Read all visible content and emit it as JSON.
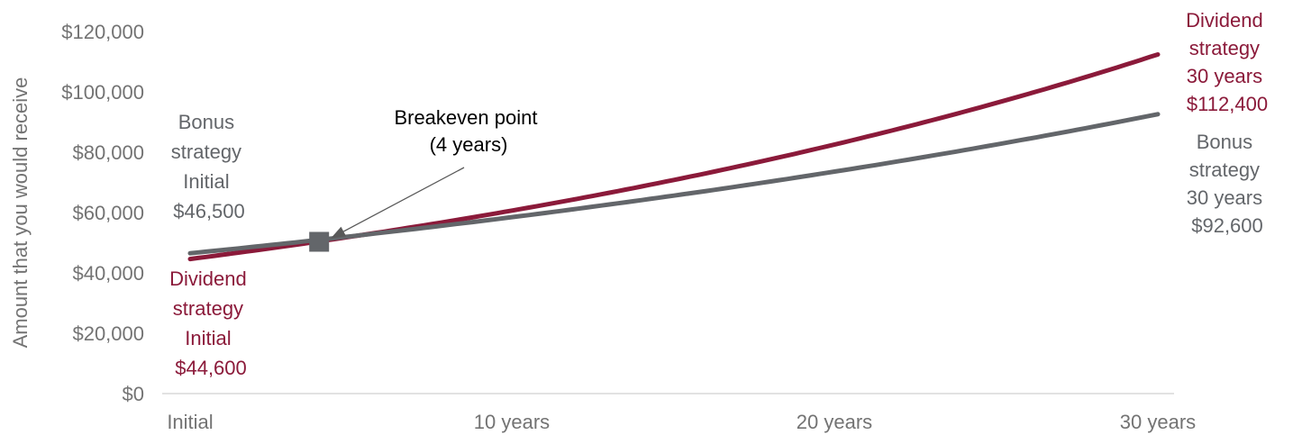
{
  "chart_data": {
    "type": "line",
    "ylabel": "Amount that you would receive",
    "y_tick_labels": [
      "$0",
      "$20,000",
      "$40,000",
      "$60,000",
      "$80,000",
      "$100,000",
      "$120,000"
    ],
    "y_ticks": [
      0,
      20000,
      40000,
      60000,
      80000,
      100000,
      120000
    ],
    "ylim": [
      0,
      120000
    ],
    "x_tick_labels": [
      "Initial",
      "10 years",
      "20 years",
      "30 years"
    ],
    "x_ticks": [
      0,
      10,
      20,
      30
    ],
    "xlim": [
      0,
      30
    ],
    "grid": false,
    "colors": {
      "dividend": "#8b1a3a",
      "bonus": "#63666a",
      "axis": "#d9d9d9",
      "text": "#737373",
      "arrow": "#595959"
    },
    "series": [
      {
        "key": "dividend",
        "start": 44600,
        "end": 112400,
        "x": [
          0,
          4,
          10,
          20,
          30
        ],
        "values": [
          44600,
          50300,
          60500,
          82300,
          112400
        ]
      },
      {
        "key": "bonus",
        "start": 46500,
        "end": 92600,
        "x": [
          0,
          4,
          10,
          20,
          30
        ],
        "values": [
          46500,
          50300,
          56400,
          71800,
          92600
        ]
      }
    ],
    "breakeven": {
      "x": 4,
      "y": 50300,
      "label_lines": [
        "Breakeven point",
        "(4 years)"
      ]
    },
    "annotations": {
      "bonus_initial": [
        "Bonus",
        "strategy",
        "Initial",
        "$46,500"
      ],
      "dividend_initial": [
        "Dividend",
        "strategy",
        "Initial",
        "$44,600"
      ],
      "dividend_end": [
        "Dividend",
        "strategy",
        "30 years",
        "$112,400"
      ],
      "bonus_end": [
        "Bonus",
        "strategy",
        "30 years",
        "$92,600"
      ]
    }
  }
}
